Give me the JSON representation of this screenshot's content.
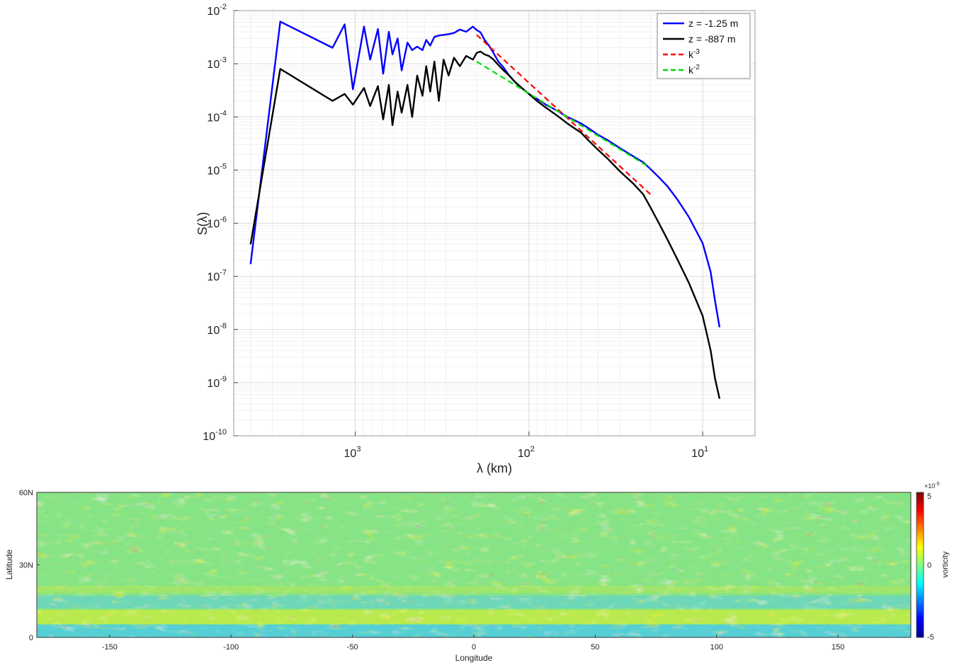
{
  "chart_data": [
    {
      "type": "line",
      "xscale": "log",
      "yscale": "log",
      "x_reversed": true,
      "xlabel": "λ (km)",
      "ylabel": "S(λ)",
      "xlim": [
        5000,
        5
      ],
      "ylim": [
        1e-10,
        0.01
      ],
      "grid": true,
      "legend_placement": "top-right",
      "x_ticks": [
        {
          "value": 1000,
          "base": "10",
          "exp": "3"
        },
        {
          "value": 100,
          "base": "10",
          "exp": "2"
        },
        {
          "value": 10,
          "base": "10",
          "exp": "1"
        }
      ],
      "y_ticks": [
        {
          "value": 0.01,
          "base": "10",
          "exp": "-2"
        },
        {
          "value": 0.001,
          "base": "10",
          "exp": "-3"
        },
        {
          "value": 0.0001,
          "base": "10",
          "exp": "-4"
        },
        {
          "value": 1e-05,
          "base": "10",
          "exp": "-5"
        },
        {
          "value": 1e-06,
          "base": "10",
          "exp": "-6"
        },
        {
          "value": 1e-07,
          "base": "10",
          "exp": "-7"
        },
        {
          "value": 1e-08,
          "base": "10",
          "exp": "-8"
        },
        {
          "value": 1e-09,
          "base": "10",
          "exp": "-9"
        },
        {
          "value": 1e-10,
          "base": "10",
          "exp": "-10"
        }
      ],
      "series": [
        {
          "name": "z = -1.25 m",
          "color": "#0000ff",
          "style": "solid",
          "x": [
            4000,
            2700,
            1350,
            1150,
            1030,
            890,
            820,
            740,
            690,
            640,
            610,
            570,
            540,
            500,
            470,
            440,
            410,
            390,
            370,
            350,
            330,
            310,
            290,
            270,
            250,
            230,
            210,
            200,
            190,
            180,
            170,
            160,
            150,
            140,
            130,
            120,
            110,
            100,
            90,
            80,
            70,
            60,
            50,
            45,
            40,
            35,
            30,
            25,
            22,
            20,
            18,
            16,
            14,
            12,
            10,
            9,
            8.5,
            8
          ],
          "y": [
            1.7e-07,
            0.0062,
            0.002,
            0.0055,
            0.00033,
            0.005,
            0.0012,
            0.0045,
            0.00065,
            0.004,
            0.0015,
            0.003,
            0.00075,
            0.0025,
            0.0018,
            0.0021,
            0.0018,
            0.0028,
            0.0022,
            0.0032,
            0.0034,
            0.0035,
            0.0036,
            0.0038,
            0.0044,
            0.004,
            0.005,
            0.0043,
            0.0039,
            0.0028,
            0.0022,
            0.0016,
            0.0011,
            0.00085,
            0.0006,
            0.00045,
            0.00035,
            0.00027,
            0.00022,
            0.00017,
            0.000135,
            0.0001,
            7.5e-05,
            6e-05,
            4.6e-05,
            3.6e-05,
            2.6e-05,
            1.8e-05,
            1.4e-05,
            1.05e-05,
            7.5e-06,
            5e-06,
            2.8e-06,
            1.3e-06,
            4.2e-07,
            1.2e-07,
            3.5e-08,
            1.1e-08
          ]
        },
        {
          "name": "z =  -887 m",
          "color": "#000000",
          "style": "solid",
          "x": [
            4000,
            2700,
            1350,
            1150,
            1030,
            890,
            820,
            740,
            690,
            640,
            610,
            570,
            540,
            500,
            470,
            440,
            410,
            390,
            370,
            350,
            330,
            310,
            290,
            270,
            250,
            230,
            210,
            200,
            190,
            180,
            170,
            160,
            150,
            140,
            130,
            120,
            110,
            100,
            90,
            80,
            70,
            60,
            50,
            45,
            40,
            35,
            30,
            25,
            22,
            20,
            18,
            16,
            14,
            12,
            10,
            9,
            8.5,
            8
          ],
          "y": [
            4e-07,
            0.0008,
            0.0002,
            0.00027,
            0.00017,
            0.00035,
            0.00016,
            0.00038,
            9e-05,
            0.0004,
            7e-05,
            0.0003,
            0.00012,
            0.0004,
            0.0001,
            0.0006,
            0.00025,
            0.0009,
            0.0003,
            0.0011,
            0.0002,
            0.0012,
            0.0006,
            0.0013,
            0.0009,
            0.0014,
            0.0012,
            0.0016,
            0.0017,
            0.0015,
            0.0014,
            0.0012,
            0.00095,
            0.00075,
            0.0006,
            0.00045,
            0.00035,
            0.00027,
            0.0002,
            0.00015,
            0.00011,
            7.5e-05,
            5e-05,
            3.5e-05,
            2.4e-05,
            1.6e-05,
            9.5e-06,
            5.5e-06,
            3.5e-06,
            2e-06,
            1.05e-06,
            5e-07,
            2.1e-07,
            7.5e-08,
            1.8e-08,
            4e-09,
            1.2e-09,
            5e-10
          ]
        },
        {
          "name": "k^-3",
          "color": "#ff0000",
          "style": "dashed",
          "x": [
            200,
            20
          ],
          "y": [
            0.0035,
            3.5e-06
          ]
        },
        {
          "name": "k^-2",
          "color": "#00dd00",
          "style": "dashed",
          "x": [
            200,
            20
          ],
          "y": [
            0.0011,
            1.1e-05
          ]
        }
      ],
      "legend": [
        {
          "name": "z = -1.25 m",
          "color": "#0000ff",
          "style": "solid",
          "base": "z = -1.25 m",
          "exp": ""
        },
        {
          "name": "z =  -887 m",
          "color": "#000000",
          "style": "solid",
          "base": "z =  -887 m",
          "exp": ""
        },
        {
          "name": "k^-3",
          "color": "#ff0000",
          "style": "dashed",
          "base": "k",
          "exp": "-3"
        },
        {
          "name": "k^-2",
          "color": "#00dd00",
          "style": "dashed",
          "base": "k",
          "exp": "-2"
        }
      ]
    },
    {
      "type": "heatmap",
      "xlabel": "Longitude",
      "ylabel": "Latitude",
      "xlim": [
        -180,
        180
      ],
      "ylim": [
        0,
        60
      ],
      "x_ticks": [
        "-150",
        "-100",
        "-50",
        "0",
        "50",
        "100",
        "150"
      ],
      "x_tick_values": [
        -150,
        -100,
        -50,
        0,
        50,
        100,
        150
      ],
      "y_ticks": [
        "0",
        "30N",
        "60N"
      ],
      "y_tick_values": [
        0,
        30,
        60
      ],
      "colorbar": {
        "label": "vorticity",
        "range": [
          -5,
          5
        ],
        "ticks": [
          "5",
          "0",
          "-5"
        ],
        "tick_values": [
          5,
          0,
          -5
        ],
        "multiplier_base": "×10",
        "multiplier_exp": "-5",
        "colormap": "jet"
      }
    }
  ]
}
